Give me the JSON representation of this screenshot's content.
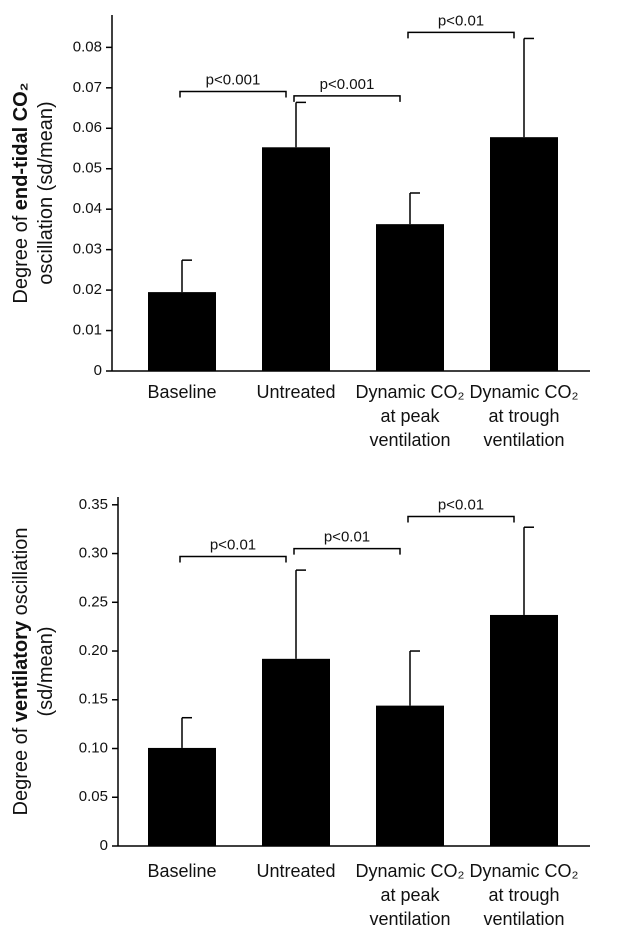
{
  "chart_data": [
    {
      "type": "bar",
      "ylabel": [
        [
          {
            "text": "Degree of ",
            "bold": false
          },
          {
            "text": "end-tidal CO₂",
            "bold": true
          }
        ],
        [
          {
            "text": "oscillation (sd/mean)",
            "bold": false
          }
        ]
      ],
      "categories": [
        [
          "Baseline"
        ],
        [
          "Untreated"
        ],
        [
          "Dynamic CO₂",
          "at peak",
          "ventilation"
        ],
        [
          "Dynamic CO₂",
          "at trough",
          "ventilation"
        ]
      ],
      "values": [
        0.0195,
        0.0553,
        0.0363,
        0.0578
      ],
      "errors": [
        0.0079,
        0.0111,
        0.0077,
        0.0244
      ],
      "color": "#000000",
      "ylim": [
        0,
        0.088
      ],
      "yticks": [
        0,
        0.01,
        0.02,
        0.03,
        0.04,
        0.05,
        0.06,
        0.07,
        0.08
      ],
      "annotations": [
        {
          "label": "p<0.001",
          "from": 0,
          "to": 1,
          "y": 0.0691
        },
        {
          "label": "p<0.001",
          "from": 1,
          "to": 2,
          "y": 0.068
        },
        {
          "label": "p<0.01",
          "from": 2,
          "to": 3,
          "y": 0.0837
        }
      ]
    },
    {
      "type": "bar",
      "ylabel": [
        [
          {
            "text": "Degree of ",
            "bold": false
          },
          {
            "text": "ventilatory",
            "bold": true
          },
          {
            "text": " oscillation",
            "bold": false
          }
        ],
        [
          {
            "text": "(sd/mean)",
            "bold": false
          }
        ]
      ],
      "categories": [
        [
          "Baseline"
        ],
        [
          "Untreated"
        ],
        [
          "Dynamic CO₂",
          "at peak",
          "ventilation"
        ],
        [
          "Dynamic CO₂",
          "at trough",
          "ventilation"
        ]
      ],
      "values": [
        0.1006,
        0.192,
        0.144,
        0.237
      ],
      "errors": [
        0.031,
        0.091,
        0.056,
        0.09
      ],
      "color": "#000000",
      "ylim": [
        0,
        0.358
      ],
      "yticks": [
        0,
        0.05,
        {
          "value": 0.1,
          "label": "0.10"
        },
        0.15,
        {
          "value": 0.2,
          "label": "0.20"
        },
        0.25,
        {
          "value": 0.3,
          "label": "0.30"
        },
        0.35
      ],
      "annotations": [
        {
          "label": "p<0.01",
          "from": 0,
          "to": 1,
          "y": 0.297
        },
        {
          "label": "p<0.01",
          "from": 1,
          "to": 2,
          "y": 0.305
        },
        {
          "label": "p<0.01",
          "from": 2,
          "to": 3,
          "y": 0.338
        }
      ]
    }
  ]
}
